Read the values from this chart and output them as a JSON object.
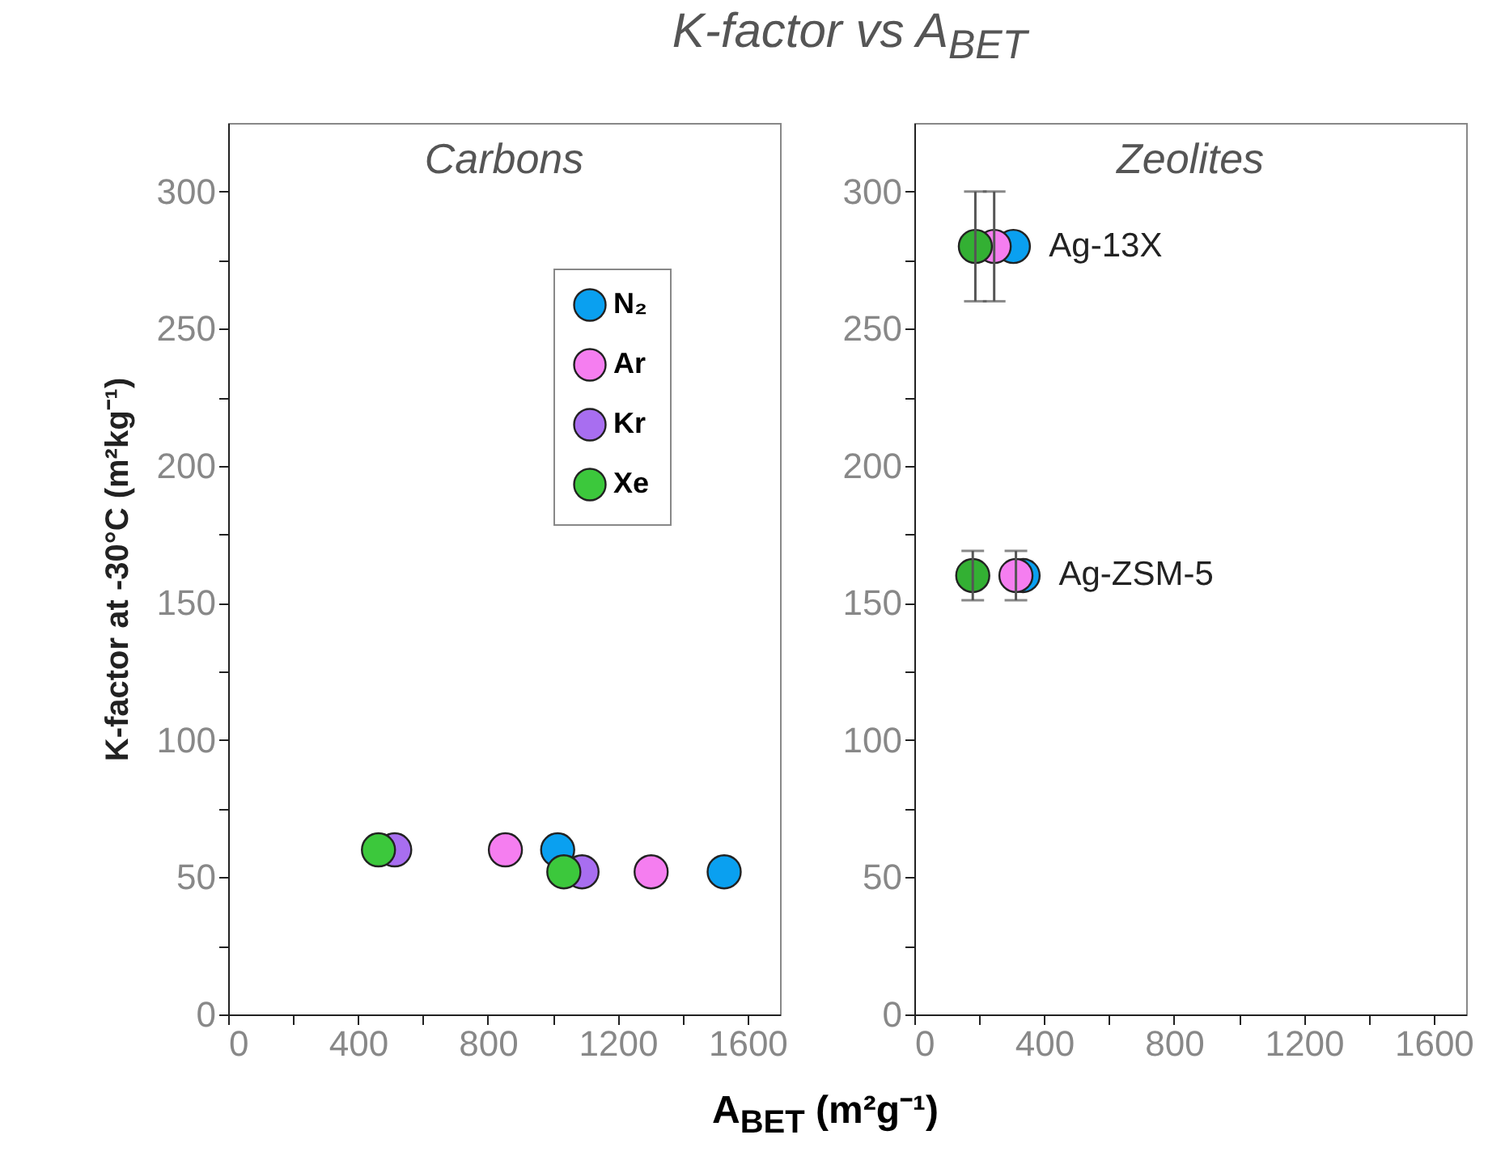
{
  "chart_data": [
    {
      "type": "scatter",
      "title": "K-factor vs A$_{BET}$",
      "subtitle": "Carbons",
      "xlabel": "A$_{BET}$ (m²g⁻¹)",
      "ylabel": "K-factor at -30°C (m²kg⁻¹)",
      "marker": "circle",
      "grid": false,
      "legend": "top right",
      "xlim": [
        0,
        1700
      ],
      "xticks": [
        0,
        {
          "value": 200,
          "label": null
        },
        400,
        {
          "value": 600,
          "label": null
        },
        800,
        {
          "value": 1000,
          "label": null
        },
        1200,
        {
          "value": 1400,
          "label": null
        },
        1600
      ],
      "ylim": [
        0,
        325
      ],
      "yticks": [
        0,
        {
          "value": 25,
          "label": null
        },
        50,
        {
          "value": 75,
          "label": null
        },
        100,
        {
          "value": 125,
          "label": null
        },
        150,
        {
          "value": 175,
          "label": null
        },
        200,
        {
          "value": 225,
          "label": null
        },
        250,
        {
          "value": 275,
          "label": null
        },
        300
      ],
      "series": [
        {
          "name": "N₂",
          "color": "#0aa0f0",
          "x": [
            1015,
            1528
          ],
          "values": [
            60,
            52
          ]
        },
        {
          "name": "Ar",
          "color": "#f57ef0",
          "x": [
            854,
            1303
          ],
          "values": [
            60,
            52
          ]
        },
        {
          "name": "Kr",
          "color": "#a86ef0",
          "x": [
            513,
            1090
          ],
          "values": [
            60,
            52
          ]
        },
        {
          "name": "Xe",
          "color": "#3cc83c",
          "x": [
            463,
            1034
          ],
          "values": [
            60,
            52
          ]
        }
      ]
    },
    {
      "type": "scatter",
      "subtitle": "Zeolites",
      "marker": "circle",
      "grid": false,
      "xlim": [
        0,
        1700
      ],
      "xticks": [
        0,
        {
          "value": 200,
          "label": null
        },
        400,
        {
          "value": 600,
          "label": null
        },
        800,
        {
          "value": 1000,
          "label": null
        },
        1200,
        {
          "value": 1400,
          "label": null
        },
        1600
      ],
      "ylim": [
        0,
        325
      ],
      "yticks": [
        0,
        {
          "value": 25,
          "label": null
        },
        50,
        {
          "value": 75,
          "label": null
        },
        100,
        {
          "value": 125,
          "label": null
        },
        150,
        {
          "value": 175,
          "label": null
        },
        200,
        {
          "value": 225,
          "label": null
        },
        250,
        {
          "value": 275,
          "label": null
        },
        300
      ],
      "annotations": [
        {
          "text": "Ag-13X",
          "x": 305,
          "y": 280
        },
        {
          "text": "Ag-ZSM-5",
          "x": 335,
          "y": 160
        }
      ],
      "series": [
        {
          "color": "#0aa0f0",
          "x": [
            305,
            335
          ],
          "values": [
            280,
            160
          ]
        },
        {
          "color": "#f57ef0",
          "x": [
            246,
            313
          ],
          "values": [
            280,
            160
          ],
          "errors": [
            20,
            9
          ]
        },
        {
          "color": "#33b033",
          "x": [
            188,
            180
          ],
          "values": [
            280,
            160
          ],
          "errors": [
            20,
            9
          ]
        }
      ]
    }
  ]
}
